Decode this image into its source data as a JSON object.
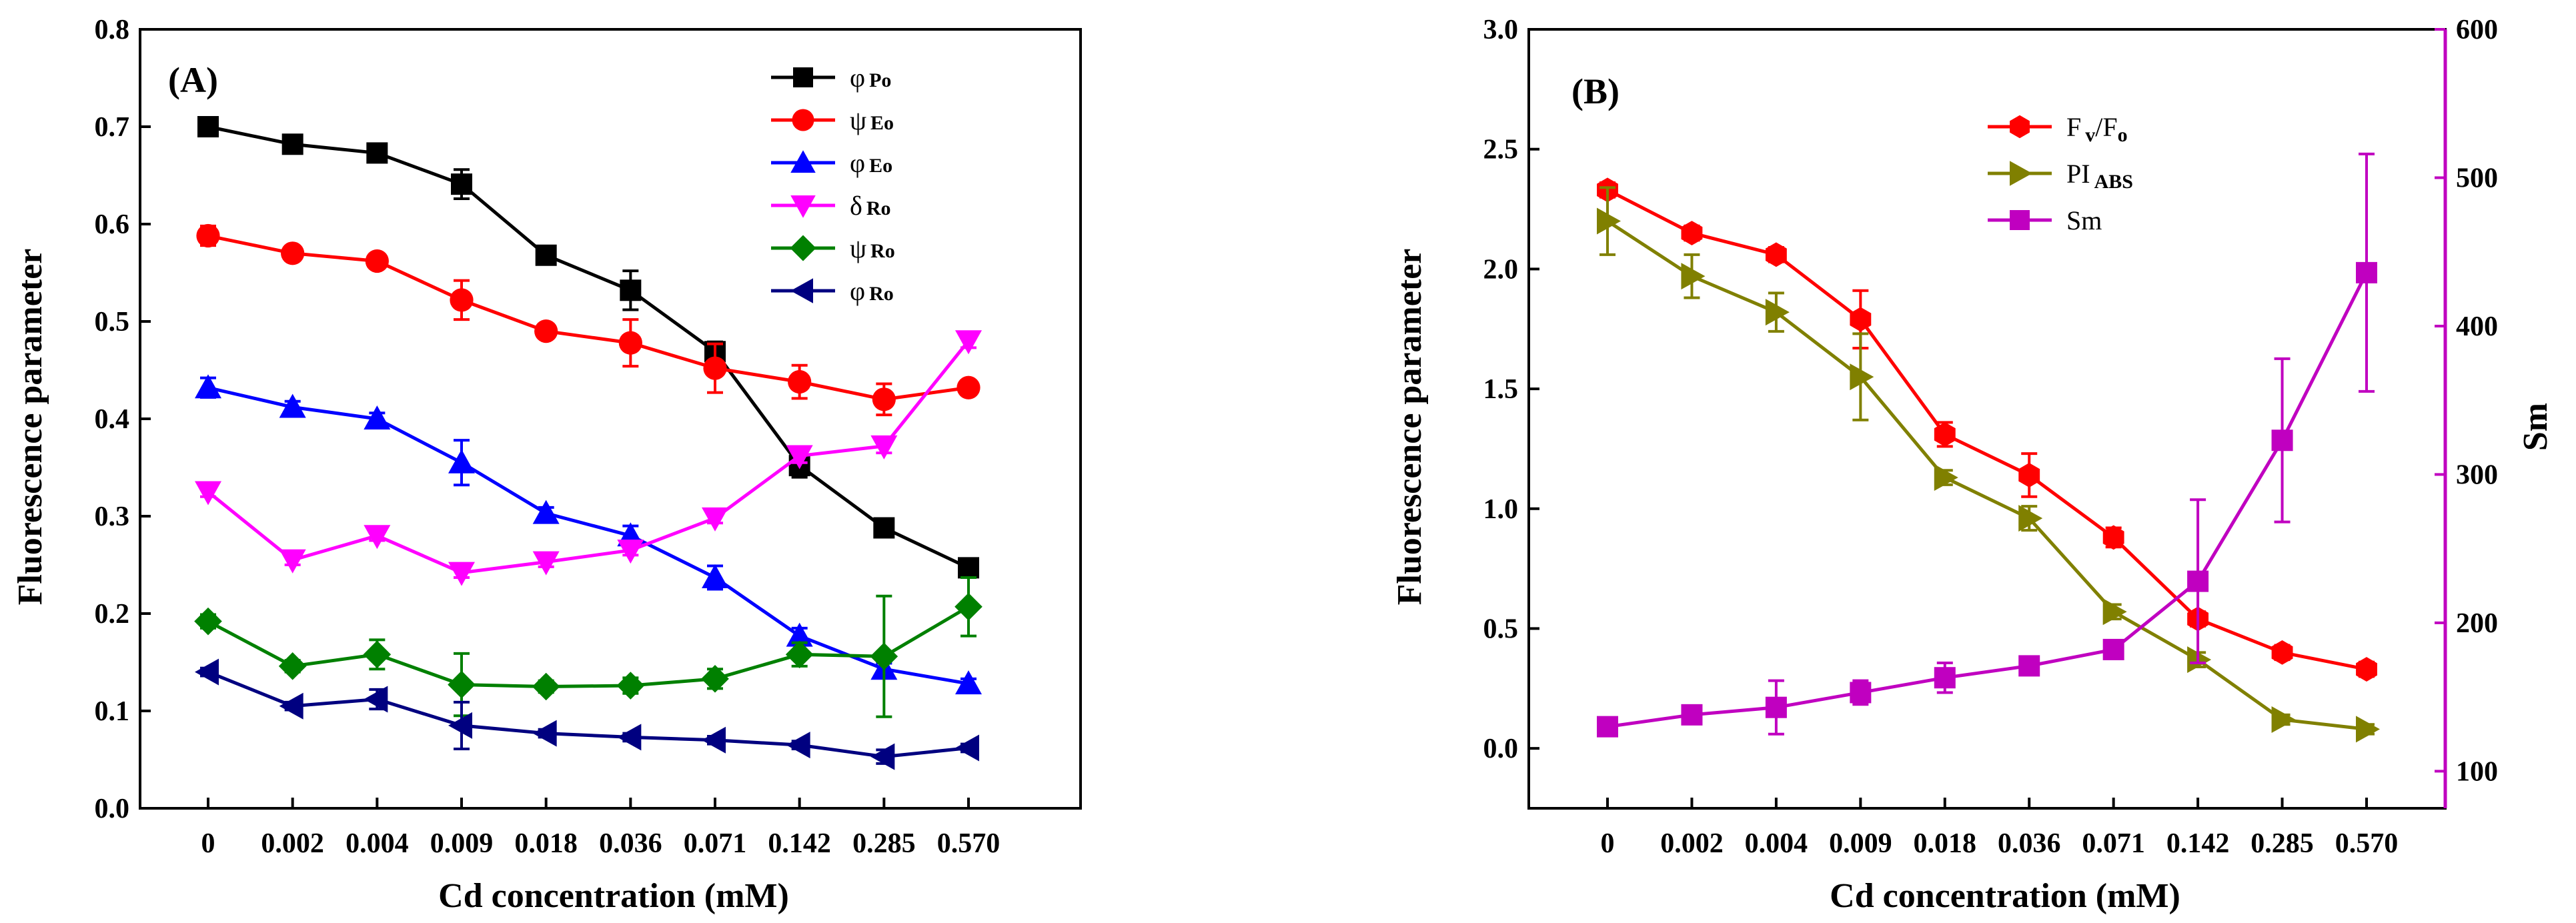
{
  "chart_data": [
    {
      "type": "line",
      "panel_label": "(A)",
      "xlabel": "Cd concentration (mM)",
      "ylabel": "Fluorescence parameter",
      "categories": [
        "0",
        "0.002",
        "0.004",
        "0.009",
        "0.018",
        "0.036",
        "0.071",
        "0.142",
        "0.285",
        "0.570"
      ],
      "ylim": [
        0,
        0.8
      ],
      "yticks": [
        "0.0",
        "0.1",
        "0.2",
        "0.3",
        "0.4",
        "0.5",
        "0.6",
        "0.7",
        "0.8"
      ],
      "legend_position": "top-right",
      "series": [
        {
          "name": "φ",
          "sub": "Po",
          "color": "#000000",
          "marker": "square",
          "values": [
            0.7,
            0.682,
            0.673,
            0.641,
            0.568,
            0.532,
            0.469,
            0.352,
            0.288,
            0.247
          ],
          "errors": [
            0.006,
            0.007,
            0.006,
            0.015,
            0.008,
            0.02,
            0.01,
            0.012,
            0.007,
            0.008
          ]
        },
        {
          "name": "ψ",
          "sub": "Eo",
          "color": "#ff0000",
          "marker": "circle",
          "values": [
            0.588,
            0.57,
            0.562,
            0.522,
            0.49,
            0.478,
            0.452,
            0.438,
            0.42,
            0.432
          ],
          "errors": [
            0.01,
            0.006,
            0.006,
            0.02,
            0.007,
            0.024,
            0.025,
            0.017,
            0.016,
            0.006
          ]
        },
        {
          "name": "φ",
          "sub": "Eo",
          "color": "#0000ff",
          "marker": "triangle-up",
          "values": [
            0.432,
            0.412,
            0.4,
            0.355,
            0.303,
            0.28,
            0.237,
            0.177,
            0.143,
            0.128
          ],
          "errors": [
            0.01,
            0.006,
            0.006,
            0.023,
            0.006,
            0.01,
            0.012,
            0.008,
            0.006,
            0.005
          ]
        },
        {
          "name": "δ",
          "sub": "Ro",
          "color": "#ff00ff",
          "marker": "triangle-down",
          "values": [
            0.325,
            0.255,
            0.28,
            0.242,
            0.253,
            0.265,
            0.298,
            0.362,
            0.372,
            0.48
          ],
          "errors": [
            0.005,
            0.005,
            0.005,
            0.005,
            0.005,
            0.005,
            0.005,
            0.007,
            0.007,
            0.007
          ]
        },
        {
          "name": "ψ",
          "sub": "Ro",
          "color": "#008000",
          "marker": "diamond",
          "values": [
            0.192,
            0.146,
            0.158,
            0.127,
            0.125,
            0.126,
            0.133,
            0.158,
            0.156,
            0.207
          ],
          "errors": [
            0.007,
            0.006,
            0.015,
            0.032,
            0.006,
            0.008,
            0.01,
            0.012,
            0.062,
            0.03
          ]
        },
        {
          "name": "φ",
          "sub": "Ro",
          "color": "#000080",
          "marker": "triangle-left",
          "values": [
            0.14,
            0.105,
            0.112,
            0.085,
            0.077,
            0.073,
            0.07,
            0.065,
            0.053,
            0.062
          ],
          "errors": [
            0.004,
            0.004,
            0.01,
            0.024,
            0.004,
            0.004,
            0.004,
            0.004,
            0.007,
            0.004
          ]
        }
      ]
    },
    {
      "type": "line",
      "panel_label": "(B)",
      "xlabel": "Cd concentration (mM)",
      "ylabel": "Fluorescence parameter",
      "y2label": "Sm",
      "categories": [
        "0",
        "0.002",
        "0.004",
        "0.009",
        "0.018",
        "0.036",
        "0.071",
        "0.142",
        "0.285",
        "0.570"
      ],
      "ylim": [
        -0.25,
        3.0
      ],
      "yticks": [
        "0.0",
        "0.5",
        "1.0",
        "1.5",
        "2.0",
        "2.5",
        "3.0"
      ],
      "y2lim": [
        75,
        600
      ],
      "y2ticks": [
        "100",
        "200",
        "300",
        "400",
        "500",
        "600"
      ],
      "legend_position": "top-center",
      "series": [
        {
          "name": "F",
          "sub": "v",
          "name2": "/F",
          "sub2": "o",
          "color": "#ff0000",
          "marker": "hexagon",
          "axis": "left",
          "values": [
            2.33,
            2.15,
            2.06,
            1.79,
            1.31,
            1.14,
            0.88,
            0.54,
            0.4,
            0.33
          ],
          "errors": [
            0.03,
            0.03,
            0.03,
            0.12,
            0.05,
            0.09,
            0.04,
            0.03,
            0.03,
            0.03
          ]
        },
        {
          "name": "PI",
          "sub": "ABS",
          "color": "#808000",
          "marker": "triangle-right",
          "axis": "left",
          "values": [
            2.2,
            1.97,
            1.82,
            1.55,
            1.13,
            0.96,
            0.57,
            0.37,
            0.12,
            0.08
          ],
          "errors": [
            0.14,
            0.09,
            0.08,
            0.18,
            0.03,
            0.05,
            0.03,
            0.03,
            0.02,
            0.02
          ]
        },
        {
          "name": "Sm",
          "color": "#c000c0",
          "marker": "square",
          "axis": "right",
          "values": [
            130,
            138,
            143,
            153,
            163,
            171,
            182,
            228,
            323,
            436
          ],
          "errors": [
            4,
            6,
            18,
            8,
            10,
            5,
            6,
            55,
            55,
            80
          ]
        }
      ]
    }
  ]
}
